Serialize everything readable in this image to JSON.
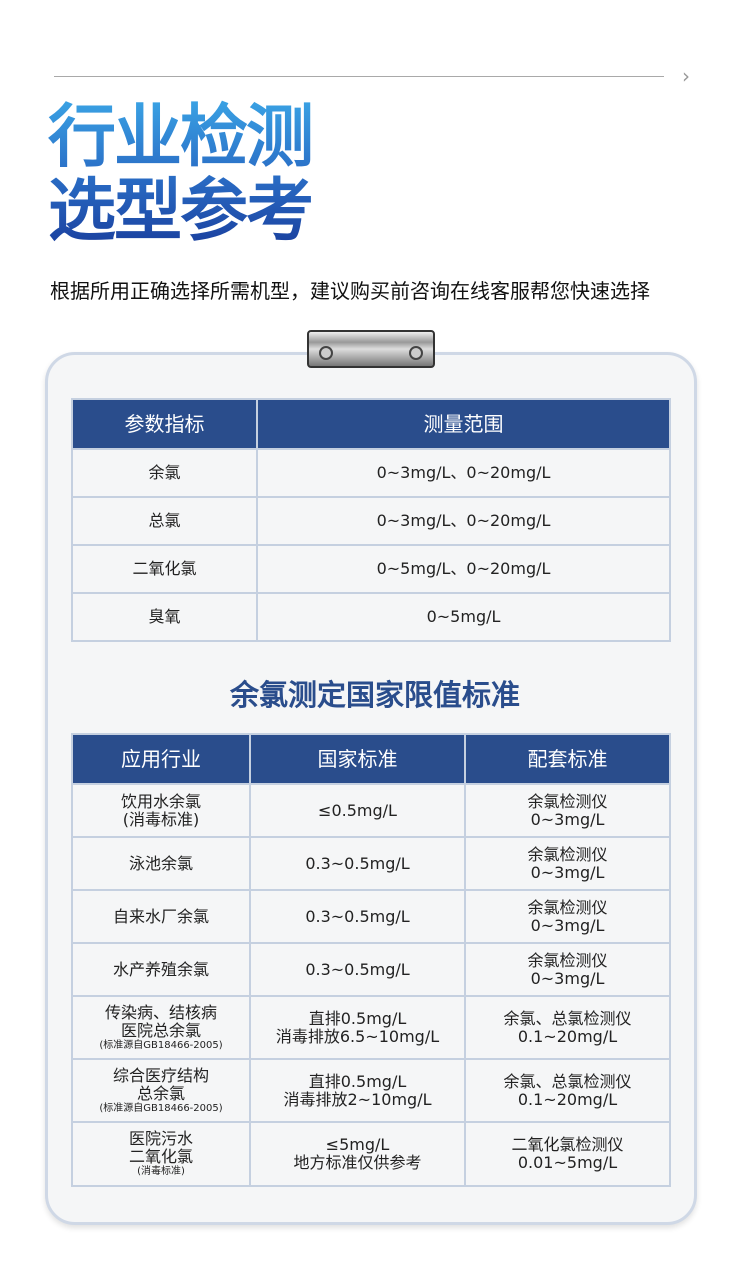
{
  "header": {
    "arrow_icon": "chevron-right-dotted",
    "title_line1": "行业检测",
    "title_line2": "选型参考",
    "subtitle": "根据所用正确选择所需机型，建议购买前咨询在线客服帮您快速选择"
  },
  "table1": {
    "headers": [
      "参数指标",
      "测量范围"
    ],
    "rows": [
      [
        "余氯",
        "0~3mg/L、0~20mg/L"
      ],
      [
        "总氯",
        "0~3mg/L、0~20mg/L"
      ],
      [
        "二氧化氯",
        "0~5mg/L、0~20mg/L"
      ],
      [
        "臭氧",
        "0~5mg/L"
      ]
    ]
  },
  "section_title": "余氯测定国家限值标准",
  "table2": {
    "headers": [
      "应用行业",
      "国家标准",
      "配套标准"
    ],
    "rows": [
      {
        "industry": "饮用水余氯",
        "industry2": "(消毒标准)",
        "note": "",
        "standard": "≤0.5mg/L",
        "standard2": "",
        "match": "余氯检测仪",
        "match2": "0~3mg/L"
      },
      {
        "industry": "泳池余氯",
        "industry2": "",
        "note": "",
        "standard": "0.3~0.5mg/L",
        "standard2": "",
        "match": "余氯检测仪",
        "match2": "0~3mg/L"
      },
      {
        "industry": "自来水厂余氯",
        "industry2": "",
        "note": "",
        "standard": "0.3~0.5mg/L",
        "standard2": "",
        "match": "余氯检测仪",
        "match2": "0~3mg/L"
      },
      {
        "industry": "水产养殖余氯",
        "industry2": "",
        "note": "",
        "standard": "0.3~0.5mg/L",
        "standard2": "",
        "match": "余氯检测仪",
        "match2": "0~3mg/L"
      },
      {
        "industry": "传染病、结核病",
        "industry2": "医院总余氯",
        "note": "(标准源自GB18466-2005)",
        "standard": "直排0.5mg/L",
        "standard2": "消毒排放6.5~10mg/L",
        "match": "余氯、总氯检测仪",
        "match2": "0.1~20mg/L"
      },
      {
        "industry": "综合医疗结构",
        "industry2": "总余氯",
        "note": "(标准源自GB18466-2005)",
        "standard": "直排0.5mg/L",
        "standard2": "消毒排放2~10mg/L",
        "match": "余氯、总氯检测仪",
        "match2": "0.1~20mg/L"
      },
      {
        "industry": "医院污水",
        "industry2": "二氧化氯",
        "note": "(消毒标准)",
        "standard": "≤5mg/L",
        "standard2": "地方标准仅供参考",
        "match": "二氧化氯检测仪",
        "match2": "0.01~5mg/L"
      }
    ]
  }
}
